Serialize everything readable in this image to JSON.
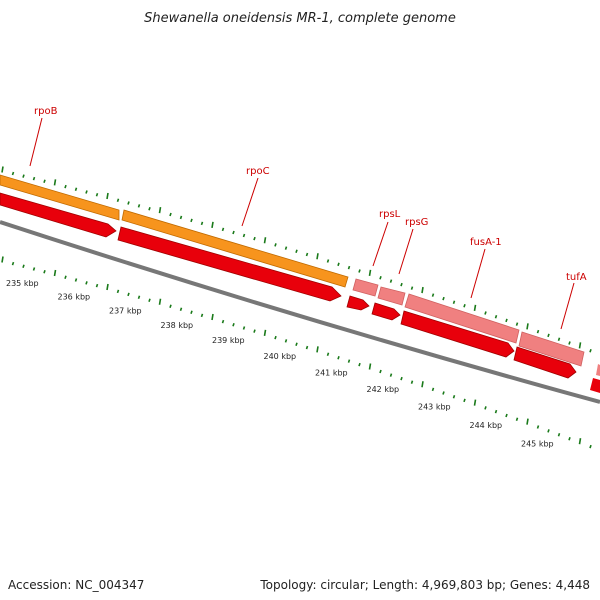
{
  "title": "Shewanella oneidensis MR-1, complete genome",
  "footer": {
    "accession": "Accession: NC_004347",
    "summary": "Topology: circular; Length: 4,969,803 bp; Genes: 4,448"
  },
  "colors": {
    "orange_feature": "#f7941d",
    "pink_feature": "#f08080",
    "red_feature": "#e8000b",
    "backbone": "#808080",
    "tick": "#1a7a1a",
    "label": "#cc0000"
  },
  "kbp_labels": [
    "235 kbp",
    "236 kbp",
    "237 kbp",
    "238 kbp",
    "239 kbp",
    "240 kbp",
    "241 kbp",
    "242 kbp",
    "243 kbp",
    "244 kbp",
    "245 kbp"
  ],
  "gene_labels": [
    "rpoB",
    "rpoC",
    "rpsL",
    "rpsG",
    "fusA-1",
    "tufA"
  ]
}
